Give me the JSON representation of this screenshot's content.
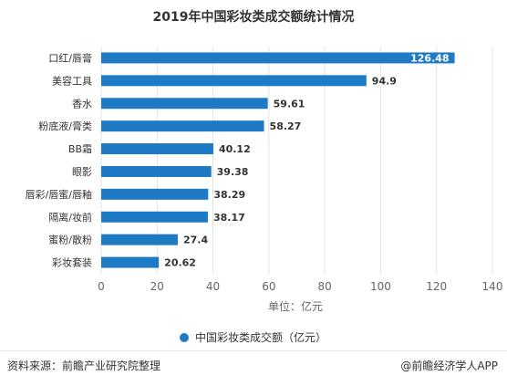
{
  "chart_data": {
    "type": "bar",
    "orientation": "horizontal",
    "title": "2019年中国彩妆类成交额统计情况",
    "categories": [
      "口红/唇膏",
      "美容工具",
      "香水",
      "粉底液/膏类",
      "BB霜",
      "眼影",
      "唇彩/唇蜜/唇釉",
      "隔离/妆前",
      "蜜粉/散粉",
      "彩妆套装"
    ],
    "series": [
      {
        "name": "中国彩妆类成交额（亿元）",
        "values": [
          126.48,
          94.9,
          59.61,
          58.27,
          40.12,
          39.38,
          38.29,
          38.17,
          27.4,
          20.62
        ],
        "labels": [
          "126.48",
          "94.9",
          "59.61",
          "58.27",
          "40.12",
          "39.38",
          "38.29",
          "38.17",
          "27.4",
          "20.62"
        ]
      }
    ],
    "xlabel": "单位：亿元",
    "xlim": [
      0,
      140
    ],
    "xticks": [
      0,
      20,
      40,
      60,
      80,
      100,
      120,
      140
    ],
    "grid": true,
    "legend_position": "bottom",
    "bar_color": "#1f7ac6"
  },
  "footer": {
    "source": "资料来源：前瞻产业研究院整理",
    "credit": "@前瞻经济学人APP"
  }
}
